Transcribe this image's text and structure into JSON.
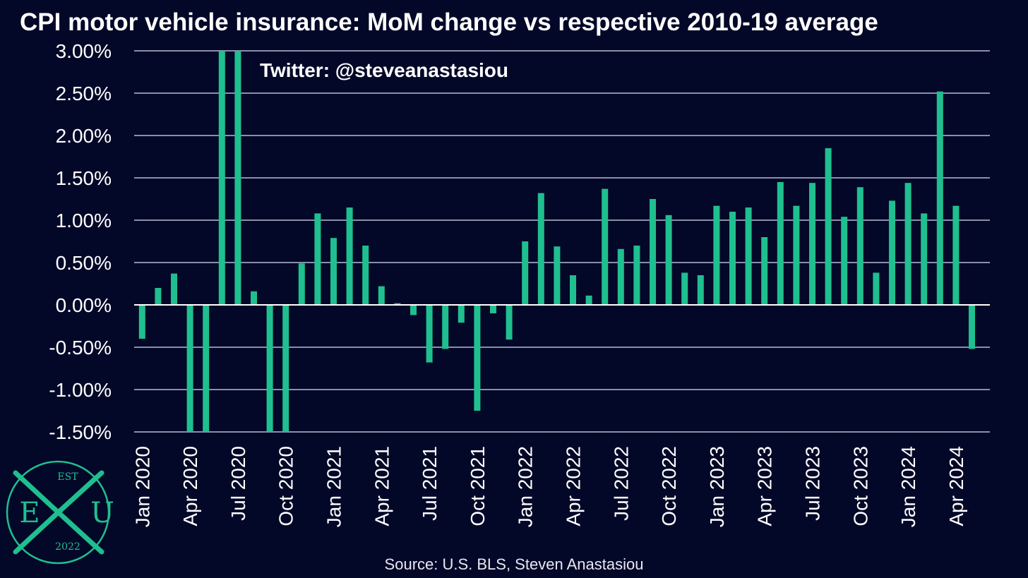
{
  "colors": {
    "background": "#040828",
    "bar": "#1fbf8f",
    "grid": "#8a8fa8",
    "zero_line": "#ffffff",
    "text": "#ffffff",
    "logo": "#1fbf8f"
  },
  "annotation": "Twitter: @steveanastasiou",
  "source": "Source: U.S. BLS, Steven Anastasiou",
  "logo": {
    "top": "EST",
    "left": "E",
    "right": "U",
    "bottom": "2022"
  },
  "chart_data": {
    "type": "bar",
    "title": "CPI motor vehicle insurance: MoM change vs respective 2010-19 average",
    "xlabel": "",
    "ylabel": "",
    "ylim": [
      -1.5,
      3.0
    ],
    "y_ticks": [
      3.0,
      2.5,
      2.0,
      1.5,
      1.0,
      0.5,
      0.0,
      -0.5,
      -1.0,
      -1.5
    ],
    "y_tick_labels": [
      "3.00%",
      "2.50%",
      "2.00%",
      "1.50%",
      "1.00%",
      "0.50%",
      "0.00%",
      "-0.50%",
      "-1.00%",
      "-1.50%"
    ],
    "grid": true,
    "legend": "none",
    "x_tick_labels": [
      "Jan 2020",
      "Apr 2020",
      "Jul 2020",
      "Oct 2020",
      "Jan 2021",
      "Apr 2021",
      "Jul 2021",
      "Oct 2021",
      "Jan 2022",
      "Apr 2022",
      "Jul 2022",
      "Oct 2022",
      "Jan 2023",
      "Apr 2023",
      "Jul 2023",
      "Oct 2023",
      "Jan 2024",
      "Apr 2024"
    ],
    "x_tick_every": 3,
    "categories": [
      "Jan 2020",
      "Feb 2020",
      "Mar 2020",
      "Apr 2020",
      "May 2020",
      "Jun 2020",
      "Jul 2020",
      "Aug 2020",
      "Sep 2020",
      "Oct 2020",
      "Nov 2020",
      "Dec 2020",
      "Jan 2021",
      "Feb 2021",
      "Mar 2021",
      "Apr 2021",
      "May 2021",
      "Jun 2021",
      "Jul 2021",
      "Aug 2021",
      "Sep 2021",
      "Oct 2021",
      "Nov 2021",
      "Dec 2021",
      "Jan 2022",
      "Feb 2022",
      "Mar 2022",
      "Apr 2022",
      "May 2022",
      "Jun 2022",
      "Jul 2022",
      "Aug 2022",
      "Sep 2022",
      "Oct 2022",
      "Nov 2022",
      "Dec 2022",
      "Jan 2023",
      "Feb 2023",
      "Mar 2023",
      "Apr 2023",
      "May 2023",
      "Jun 2023",
      "Jul 2023",
      "Aug 2023",
      "Sep 2023",
      "Oct 2023",
      "Nov 2023",
      "Dec 2023",
      "Jan 2024",
      "Feb 2024",
      "Mar 2024",
      "Apr 2024",
      "May 2024"
    ],
    "values": [
      -0.4,
      0.2,
      0.37,
      -1.5,
      -1.5,
      3.0,
      3.0,
      0.16,
      -1.5,
      -1.5,
      0.49,
      1.08,
      0.79,
      1.15,
      0.7,
      0.22,
      0.02,
      -0.12,
      -0.68,
      -0.52,
      -0.21,
      -1.25,
      -0.1,
      -0.41,
      0.75,
      1.32,
      0.69,
      0.35,
      0.11,
      1.37,
      0.66,
      0.7,
      1.25,
      1.06,
      0.38,
      0.35,
      1.17,
      1.1,
      1.15,
      0.8,
      1.45,
      1.17,
      1.44,
      1.85,
      1.04,
      1.39,
      0.38,
      1.23,
      1.44,
      1.08,
      2.52,
      1.17,
      -0.52
    ]
  }
}
